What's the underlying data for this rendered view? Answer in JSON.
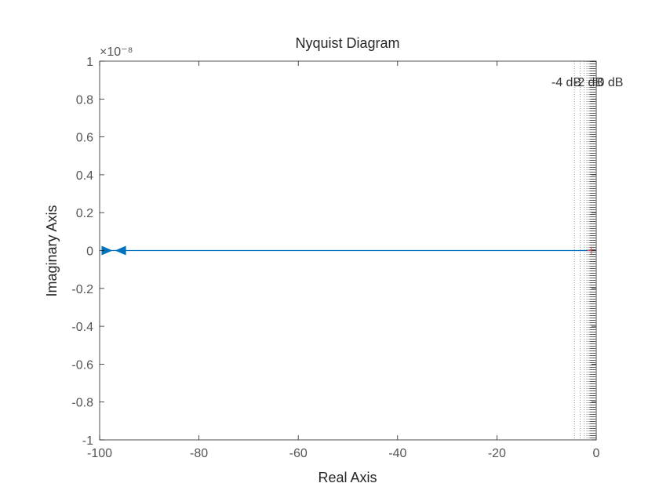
{
  "chart_data": {
    "type": "line",
    "title": "Nyquist Diagram",
    "xlabel": "Real Axis",
    "ylabel": "Imaginary Axis",
    "xlim": [
      -100,
      0
    ],
    "ylim": [
      -1e-08,
      1e-08
    ],
    "y_exponent_label": "×10⁻⁸",
    "x_ticks": [
      -100,
      -80,
      -60,
      -40,
      -20,
      0
    ],
    "x_tick_labels": [
      "-100",
      "-80",
      "-60",
      "-40",
      "-20",
      "0"
    ],
    "y_ticks": [
      1,
      0.8,
      0.6,
      0.4,
      0.2,
      0,
      -0.2,
      -0.4,
      -0.6,
      -0.8,
      -1
    ],
    "y_tick_labels": [
      "1",
      "0.8",
      "0.6",
      "0.4",
      "0.2",
      "0",
      "-0.2",
      "-0.4",
      "-0.6",
      "-0.8",
      "-1"
    ],
    "grid": true,
    "series": [
      {
        "color": "#0072bd",
        "x": [
          -99.0,
          -0.2
        ],
        "y": [
          0,
          0
        ],
        "arrows": [
          {
            "x": -98.5,
            "direction": "right"
          },
          {
            "x": -95.8,
            "direction": "left"
          }
        ]
      }
    ],
    "critical_point": {
      "x": -1,
      "y": 0,
      "marker": "+",
      "color": "#d9534f"
    },
    "db_contour_labels": [
      "-4 dB",
      "-2 dB",
      "0 dB"
    ],
    "db_contour_x": [
      -4.4,
      -3.2,
      -2.4,
      -1.9,
      -1.6,
      -1.4,
      -1.25,
      -1.15,
      -1.08,
      -1.03,
      -0.98,
      -0.93,
      -0.88,
      -0.82,
      -0.76,
      -0.7,
      -0.64,
      -0.58,
      -0.52,
      -0.46,
      -0.4,
      -0.34,
      -0.28,
      -0.22,
      -0.16
    ]
  }
}
